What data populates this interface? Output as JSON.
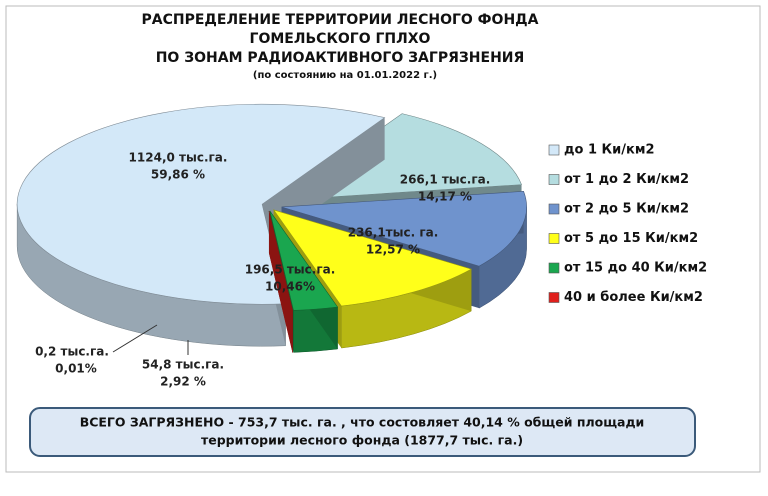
{
  "chart_data": {
    "type": "pie3d",
    "title": [
      "РАСПРЕДЕЛЕНИЕ ТЕРРИТОРИИ ЛЕСНОГО ФОНДА",
      "ГОМЕЛЬСКОГО ГПЛХО",
      "ПО ЗОНАМ РАДИОАКТИВНОГО ЗАГРЯЗНЕНИЯ"
    ],
    "subtitle": "(по состоянию на 01.01.2022 г.)",
    "categories": [
      "до 1 Ки/км2",
      "от 1 до 2 Ки/км2",
      "от 2 до 5 Ки/км2",
      "от 5 до 15 Ки/км2",
      "от 15 до 40 Ки/км2",
      "40 и более Ки/км2"
    ],
    "values": [
      1124.0,
      266.1,
      236.1,
      196.5,
      54.8,
      0.2
    ],
    "value_labels": [
      "1124,0 тыс.га.",
      "266,1 тыс.га.",
      "236,1тыс. га.",
      "196,5 тыс.га.",
      "54,8 тыс.га.",
      "0,2 тыс.га."
    ],
    "percents": [
      59.86,
      14.17,
      12.57,
      10.46,
      2.92,
      0.01
    ],
    "percent_labels": [
      "59,86 %",
      "14,17 %",
      "12,57 %",
      "10,46%",
      "2,92 %",
      "0,01%"
    ],
    "colors": [
      "#d3e8f8",
      "#b5dde0",
      "#6f93cd",
      "#ffff1a",
      "#1aa64f",
      "#e0201c"
    ],
    "legend": "right",
    "note": [
      "ВСЕГО ЗАГРЯЗНЕНО - 753,7 тыс. га. , что состовляет 40,14 % общей площади",
      "территории  лесного фонда  (1877,7 тыс. га.)"
    ]
  }
}
